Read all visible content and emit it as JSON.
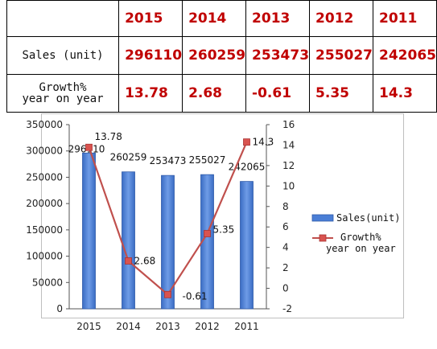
{
  "table": {
    "header": [
      "2015",
      "2014",
      "2013",
      "2012",
      "2011"
    ],
    "rows": [
      {
        "label": [
          "Sales (unit)"
        ],
        "values": [
          "296110",
          "260259",
          "253473",
          "255027",
          "242065"
        ]
      },
      {
        "label": [
          "Growth%",
          "year on year"
        ],
        "values": [
          "13.78",
          "2.68",
          "-0.61",
          "5.35",
          "14.3"
        ]
      }
    ]
  },
  "chart_data": {
    "type": "bar",
    "categories": [
      "2015",
      "2014",
      "2013",
      "2012",
      "2011"
    ],
    "series": [
      {
        "name": "Sales(unit)",
        "type": "bar",
        "axis": "left",
        "values": [
          296110,
          260259,
          253473,
          255027,
          242065
        ],
        "color": "#4a7ed6"
      },
      {
        "name": "Growth% year on year",
        "type": "line",
        "axis": "right",
        "values": [
          13.78,
          2.68,
          -0.61,
          5.35,
          14.3
        ],
        "color": "#c0504d"
      }
    ],
    "bar_labels": [
      "296110",
      "260259",
      "253473",
      "255027",
      "242065"
    ],
    "line_labels": [
      "13.78",
      "2.68",
      "-0.61",
      "5.35",
      "14.3"
    ],
    "ylim_left": [
      0,
      350000
    ],
    "yticks_left": [
      "350000",
      "300000",
      "250000",
      "200000",
      "150000",
      "100000",
      "50000",
      "0"
    ],
    "ylim_right": [
      -2,
      16
    ],
    "yticks_right": [
      "16",
      "14",
      "12",
      "10",
      "8",
      "6",
      "4",
      "2",
      "0",
      "-2"
    ],
    "grid": false,
    "legend": {
      "position": "right",
      "entries": [
        {
          "lines": [
            "Sales(unit)"
          ],
          "marker": "bar",
          "color": "#4a7ed6"
        },
        {
          "lines": [
            "Growth%",
            "year on year"
          ],
          "marker": "line",
          "color": "#c0504d"
        }
      ]
    }
  }
}
